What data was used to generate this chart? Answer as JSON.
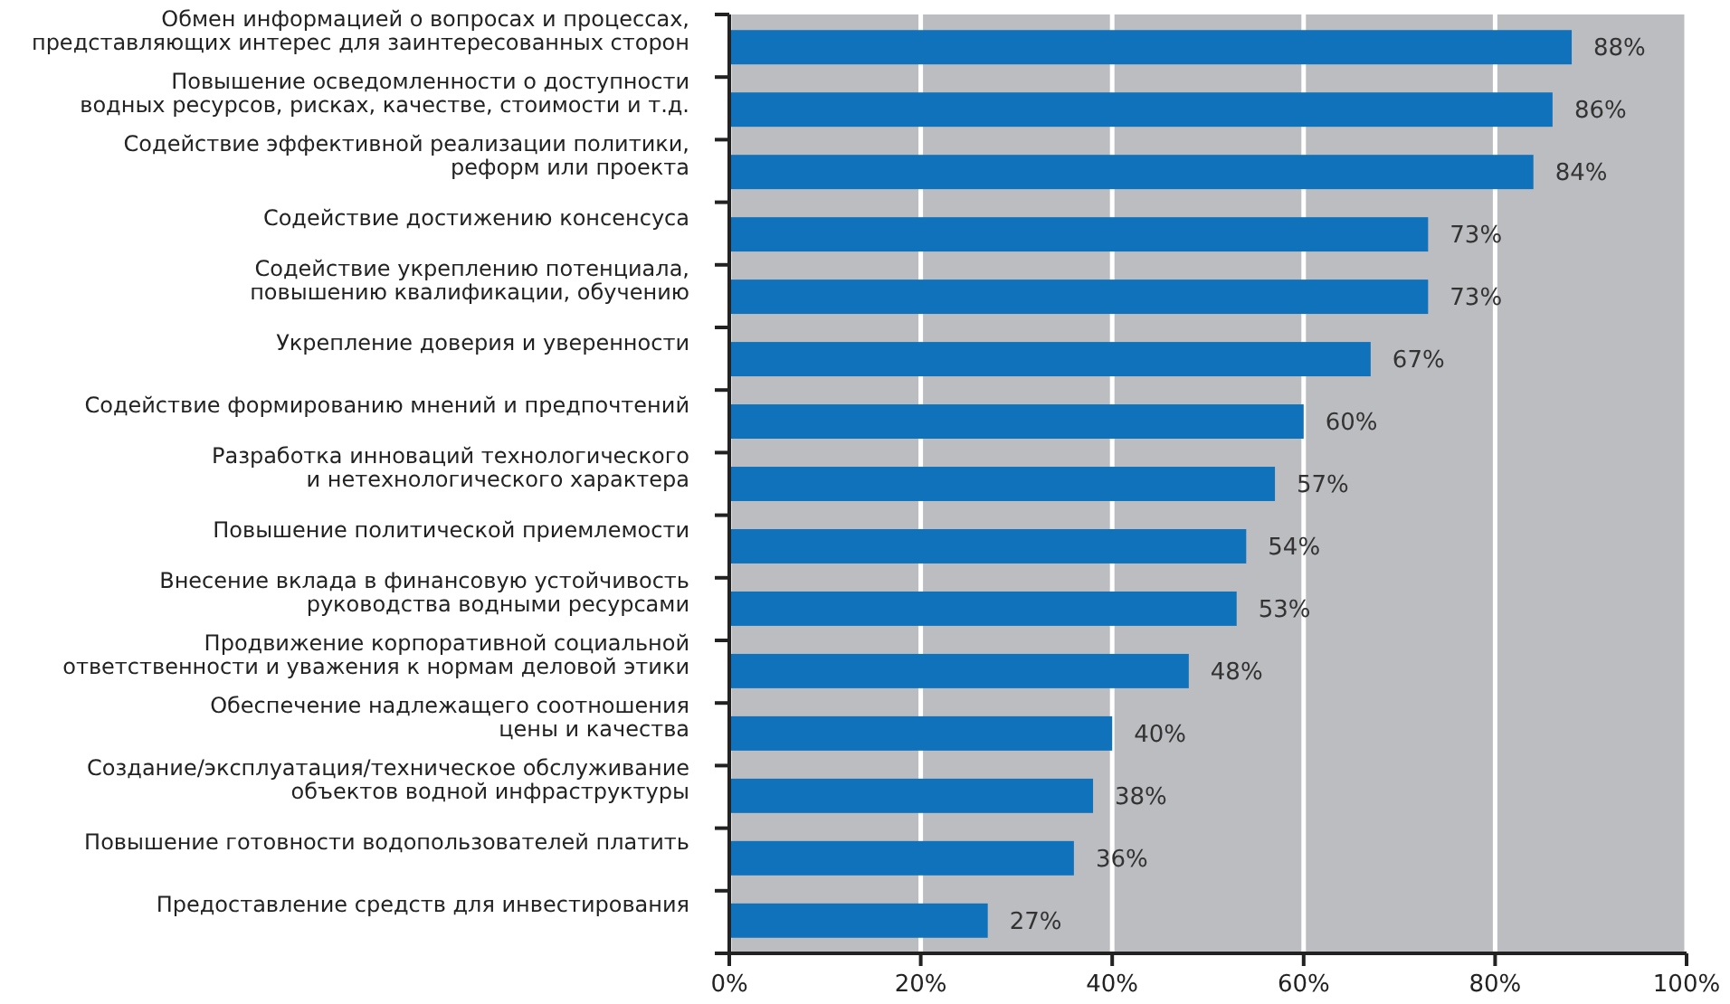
{
  "chart_data": {
    "type": "bar",
    "orientation": "horizontal",
    "categories": [
      "Обмен информацией о вопросах и процессах,\nпредставляющих интерес для заинтересованных сторон",
      "Повышение осведомленности о доступности\nводных ресурсов, рисках, качестве, стоимости и т.д.",
      "Содействие эффективной реализации политики,\nреформ или проекта",
      "Содействие достижению консенсуса",
      "Содействие укреплению потенциала,\nповышению квалификации, обучению",
      "Укрепление доверия и уверенности",
      "Содействие формированию мнений и предпочтений",
      "Разработка инноваций технологического\nи нетехнологического характера",
      "Повышение политической приемлемости",
      "Внесение вклада в финансовую устойчивость\nруководства водными ресурсами",
      "Продвижение корпоративной социальной\nответственности и уважения к нормам деловой этики",
      "Обеспечение надлежащего соотношения\nцены и качества",
      "Создание/эксплуатация/техническое обслуживание\nобъектов водной инфраструктуры",
      "Повышение готовности водопользователей платить",
      "Предоставление средств для инвестирования"
    ],
    "values": [
      88,
      86,
      84,
      73,
      73,
      67,
      60,
      57,
      54,
      53,
      48,
      40,
      38,
      36,
      27
    ],
    "value_labels": [
      "88%",
      "86%",
      "84%",
      "73%",
      "73%",
      "67%",
      "60%",
      "57%",
      "54%",
      "53%",
      "48%",
      "40%",
      "38%",
      "36%",
      "27%"
    ],
    "color": "#1072bb",
    "xlim": [
      0,
      100
    ],
    "xticks": [
      {
        "value": 0,
        "label": "0%"
      },
      {
        "value": 20,
        "label": "20%"
      },
      {
        "value": 40,
        "label": "40%"
      },
      {
        "value": 60,
        "label": "60%"
      },
      {
        "value": 80,
        "label": "80%"
      },
      {
        "value": 100,
        "label": "100%"
      }
    ],
    "grid": "x"
  }
}
